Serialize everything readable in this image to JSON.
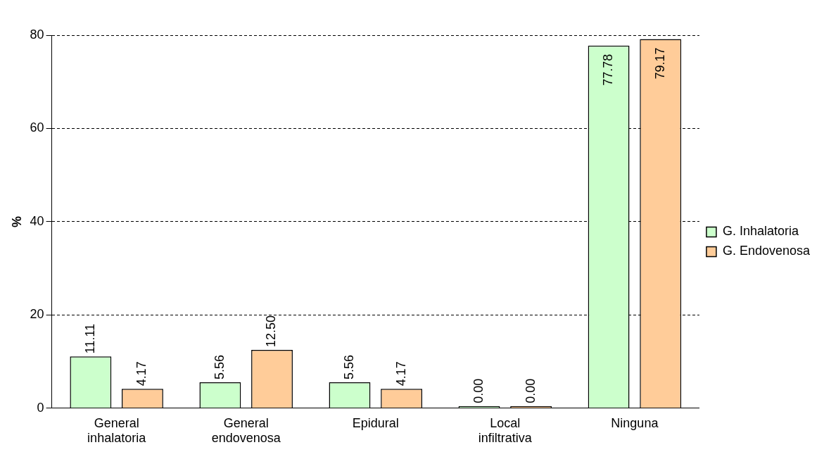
{
  "chart_data": {
    "type": "bar",
    "ylabel": "%",
    "categories": [
      "General inhalatoria",
      "General endovenosa",
      "Epidural",
      "Local infiltrativa",
      "Ninguna"
    ],
    "series": [
      {
        "name": "G. Inhalatoria",
        "color": "#ccffcc",
        "values": [
          11.11,
          5.56,
          5.56,
          0,
          77.78
        ],
        "value_labels": [
          "11.11",
          "5.56",
          "5.56",
          "0.00",
          "77.78"
        ]
      },
      {
        "name": "G. Endovenosa",
        "color": "#ffcc99",
        "values": [
          4.17,
          12.5,
          4.17,
          0,
          79.17
        ],
        "value_labels": [
          "4.17",
          "12.50",
          "4.17",
          "0.00",
          "79.17"
        ]
      }
    ],
    "ylim": [
      0,
      80
    ],
    "yticks": [
      0,
      20,
      40,
      60,
      80
    ],
    "grid": "y",
    "legend": "right"
  }
}
